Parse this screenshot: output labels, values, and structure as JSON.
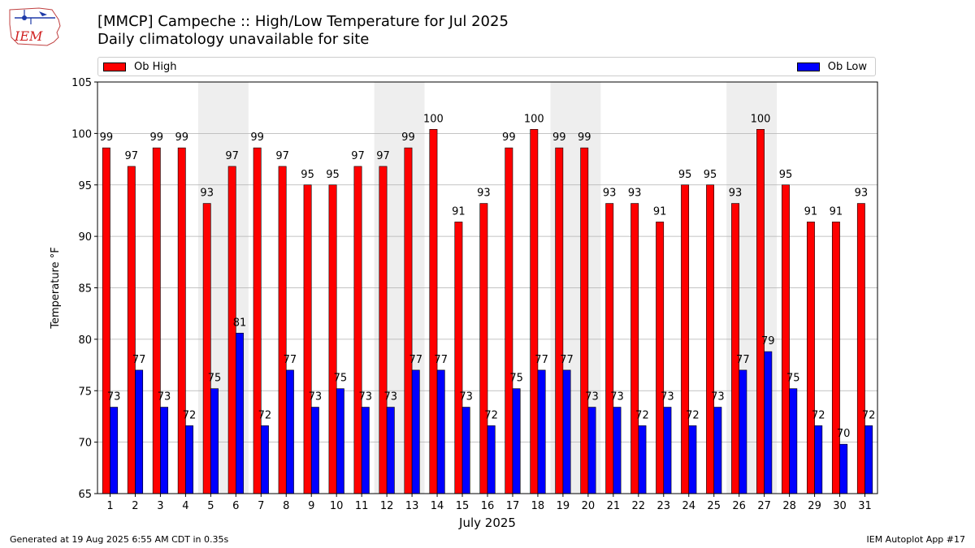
{
  "title_line1": "[MMCP] Campeche :: High/Low Temperature for Jul 2025",
  "title_line2": "Daily climatology unavailable for site",
  "logo_text": "IEM",
  "footer": {
    "generated": "Generated at 19 Aug 2025 6:55 AM CDT in 0.35s",
    "app": "IEM Autoplot App #17"
  },
  "colors": {
    "high": "#ff0000",
    "low": "#0000ff",
    "weekend": "#eeeeee",
    "grid": "#b0b0b0"
  },
  "chart_data": {
    "type": "bar",
    "xlabel": "July 2025",
    "ylabel": "Temperature °F",
    "ylim": [
      65,
      105
    ],
    "yticks": [
      65,
      70,
      75,
      80,
      85,
      90,
      95,
      100,
      105
    ],
    "grid": true,
    "legend_placement": "top",
    "categories": [
      "1",
      "2",
      "3",
      "4",
      "5",
      "6",
      "7",
      "8",
      "9",
      "10",
      "11",
      "12",
      "13",
      "14",
      "15",
      "16",
      "17",
      "18",
      "19",
      "20",
      "21",
      "22",
      "23",
      "24",
      "25",
      "26",
      "27",
      "28",
      "29",
      "30",
      "31"
    ],
    "shaded_days": [
      [
        "5",
        "6"
      ],
      [
        "12",
        "13"
      ],
      [
        "19",
        "20"
      ],
      [
        "26",
        "27"
      ]
    ],
    "series": [
      {
        "name": "Ob High",
        "values": [
          98.6,
          96.8,
          98.6,
          98.6,
          93.2,
          96.8,
          98.6,
          96.8,
          95.0,
          95.0,
          96.8,
          96.8,
          98.6,
          100.4,
          91.4,
          93.2,
          98.6,
          100.4,
          98.6,
          98.6,
          93.2,
          93.2,
          91.4,
          95.0,
          95.0,
          93.2,
          100.4,
          95.0,
          91.4,
          91.4,
          93.2
        ],
        "labels": [
          "99",
          "97",
          "99",
          "99",
          "93",
          "97",
          "99",
          "97",
          "95",
          "95",
          "97",
          "97",
          "99",
          "100",
          "91",
          "93",
          "99",
          "100",
          "99",
          "99",
          "93",
          "93",
          "91",
          "95",
          "95",
          "93",
          "100",
          "95",
          "91",
          "91",
          "93"
        ]
      },
      {
        "name": "Ob Low",
        "values": [
          73.4,
          77.0,
          73.4,
          71.6,
          75.2,
          80.6,
          71.6,
          77.0,
          73.4,
          75.2,
          73.4,
          73.4,
          77.0,
          77.0,
          73.4,
          71.6,
          75.2,
          77.0,
          77.0,
          73.4,
          73.4,
          71.6,
          73.4,
          71.6,
          73.4,
          77.0,
          78.8,
          75.2,
          71.6,
          69.8,
          71.6
        ],
        "labels": [
          "73",
          "77",
          "73",
          "72",
          "75",
          "81",
          "72",
          "77",
          "73",
          "75",
          "73",
          "73",
          "77",
          "77",
          "73",
          "72",
          "75",
          "77",
          "77",
          "73",
          "73",
          "72",
          "73",
          "72",
          "73",
          "77",
          "79",
          "75",
          "72",
          "70",
          "72"
        ]
      }
    ]
  }
}
